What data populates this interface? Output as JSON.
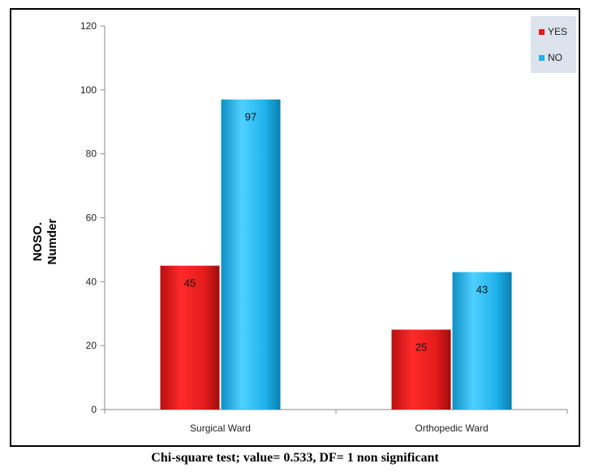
{
  "chart_data": {
    "type": "bar",
    "categories": [
      "Surgical Ward",
      "Orthopedic Ward"
    ],
    "series": [
      {
        "name": "YES",
        "values": [
          45,
          25
        ],
        "color": "#e31b1b"
      },
      {
        "name": "NO",
        "values": [
          97,
          43
        ],
        "color": "#1eb1ea"
      }
    ],
    "ylabel_lines": [
      "NOSO.",
      "Numder"
    ],
    "ylim": [
      0,
      120
    ],
    "yticks": [
      0,
      20,
      40,
      60,
      80,
      100,
      120
    ],
    "grid": false,
    "legend_position": "top-right"
  },
  "caption": "Chi-square test; value= 0.533, DF= 1 non significant"
}
